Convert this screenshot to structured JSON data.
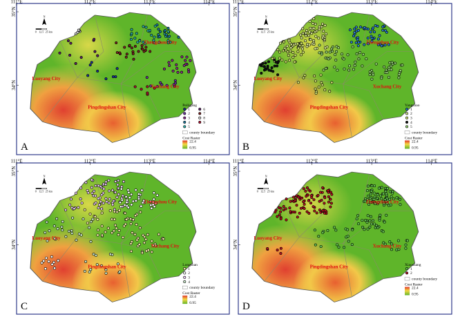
{
  "graticule": {
    "lon": [
      "111°E",
      "112°E",
      "113°E",
      "114°E"
    ],
    "lat": [
      "35°N",
      "34°N"
    ]
  },
  "cities": [
    "Zhengzhou City",
    "Luoyang City",
    "Xuchang City",
    "Pingdingshan City"
  ],
  "scalebar": {
    "labels": [
      "0",
      "12.5",
      "25"
    ],
    "unit": "km",
    "north": "N"
  },
  "raster": {
    "title": "Cost Raster",
    "high": "22.4",
    "low": "0.95",
    "county_label": "county boundary"
  },
  "colors": {
    "frame": "#2e3a8a",
    "city": "#e01010",
    "low": "#5fb52a",
    "mid": "#f2e64a",
    "high": "#d8362a"
  },
  "panels": [
    {
      "id": "A",
      "letter": "A",
      "legend_title": "Peiligang",
      "classes": [
        "1",
        "2",
        "3",
        "4",
        "5",
        "6",
        "7",
        "8",
        "9"
      ],
      "class_colors": [
        "#1a2e99",
        "#6a2fa0",
        "#8a2b8a",
        "#1a7aa0",
        "#2aa8a0",
        "#5a1d66",
        "#7a2020",
        "#d0d0d0",
        "#b01030"
      ]
    },
    {
      "id": "B",
      "letter": "B",
      "legend_title": "Yangshao",
      "classes": [
        "1",
        "2",
        "3",
        "4",
        "5"
      ],
      "class_colors": [
        "#2a7ad0",
        "#d8e890",
        "#cfe070",
        "#111111",
        "#90d070"
      ]
    },
    {
      "id": "C",
      "letter": "C",
      "legend_title": "Longshan",
      "classes": [
        "1",
        "2",
        "3",
        "4"
      ],
      "class_colors": [
        "#f3e8a8",
        "#ffffff",
        "#e8c8f0",
        "#c8e8c8"
      ]
    },
    {
      "id": "D",
      "letter": "D",
      "legend_title": "Xiaoshang",
      "classes": [
        "1",
        "2"
      ],
      "class_colors": [
        "#60c050",
        "#b01020"
      ]
    }
  ]
}
